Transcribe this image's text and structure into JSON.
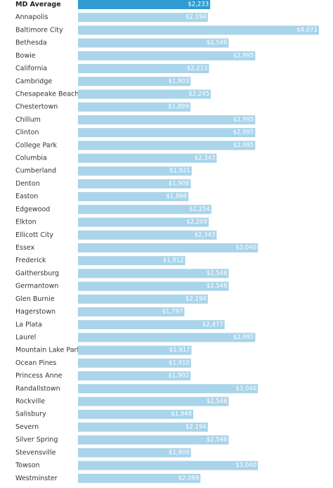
{
  "colors": {
    "bar": "#a9d4ea",
    "highlight_bar": "#2f9bd1",
    "label_text": "#333333",
    "value_text": "#ffffff"
  },
  "chart_data": {
    "type": "bar",
    "orientation": "horizontal",
    "title": "",
    "xlabel": "",
    "ylabel": "",
    "highlight_category": "MD Average",
    "xlim": [
      0,
      4071
    ],
    "grid": false,
    "legend": "none",
    "categories": [
      "MD Average",
      "Annapolis",
      "Baltimore City",
      "Bethesda",
      "Bowie",
      "California",
      "Cambridge",
      "Chesapeake Beach",
      "Chestertown",
      "Chillum",
      "Clinton",
      "College Park",
      "Columbia",
      "Cumberland",
      "Denton",
      "Easton",
      "Edgewood",
      "Elkton",
      "Ellicott City",
      "Essex",
      "Frederick",
      "Gaithersburg",
      "Germantown",
      "Glen Burnie",
      "Hagerstown",
      "La Plata",
      "Laurel",
      "Mountain Lake Park",
      "Ocean Pines",
      "Princess Anne",
      "Randallstown",
      "Rockville",
      "Salisbury",
      "Severn",
      "Silver Spring",
      "Stevensville",
      "Towson",
      "Westminster"
    ],
    "values": [
      2233,
      2194,
      4071,
      2546,
      2995,
      2213,
      1903,
      2245,
      1899,
      2995,
      2995,
      2995,
      2343,
      1921,
      1906,
      1866,
      2254,
      2209,
      2343,
      3040,
      1812,
      2546,
      2546,
      2194,
      1797,
      2477,
      2995,
      1917,
      1910,
      1902,
      3040,
      2546,
      1948,
      2194,
      2546,
      1908,
      3040,
      2069
    ],
    "value_labels": [
      "$2,233",
      "$2,194",
      "$4,071",
      "$2,546",
      "$2,995",
      "$2,213",
      "$1,903",
      "$2,245",
      "$1,899",
      "$2,995",
      "$2,995",
      "$2,995",
      "$2,343",
      "$1,921",
      "$1,906",
      "$1,866",
      "$2,254",
      "$2,209",
      "$2,343",
      "$3,040",
      "$1,812",
      "$2,546",
      "$2,546",
      "$2,194",
      "$1,797",
      "$2,477",
      "$2,995",
      "$1,917",
      "$1,910",
      "$1,902",
      "$3,040",
      "$2,546",
      "$1,948",
      "$2,194",
      "$2,546",
      "$1,908",
      "$3,040",
      "$2,069"
    ]
  }
}
